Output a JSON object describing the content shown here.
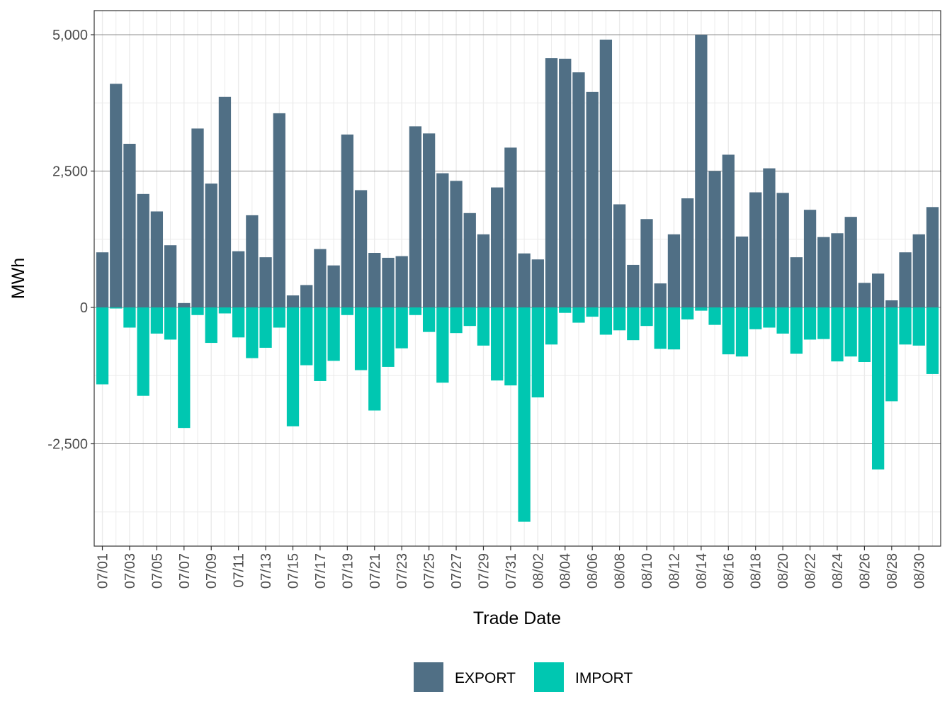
{
  "chart_data": {
    "type": "bar",
    "stacked": true,
    "xlabel": "Trade Date",
    "ylabel": "MWh",
    "ylim": [
      -3500,
      5000
    ],
    "yticks": [
      -2500,
      0,
      2500,
      5000
    ],
    "ytick_labels": [
      "-2,500",
      "0",
      "2,500",
      "5,000"
    ],
    "grid": true,
    "legend_position": "bottom",
    "categories": [
      "07/01",
      "07/02",
      "07/03",
      "07/04",
      "07/05",
      "07/06",
      "07/07",
      "07/08",
      "07/09",
      "07/10",
      "07/11",
      "07/12",
      "07/13",
      "07/14",
      "07/15",
      "07/16",
      "07/17",
      "07/18",
      "07/19",
      "07/20",
      "07/21",
      "07/22",
      "07/23",
      "07/24",
      "07/25",
      "07/26",
      "07/27",
      "07/28",
      "07/29",
      "07/30",
      "07/31",
      "08/01",
      "08/02",
      "08/03",
      "08/04",
      "08/05",
      "08/06",
      "08/07",
      "08/08",
      "08/09",
      "08/10",
      "08/11",
      "08/12",
      "08/13",
      "08/14",
      "08/15",
      "08/16",
      "08/17",
      "08/18",
      "08/19",
      "08/20",
      "08/21",
      "08/22",
      "08/23",
      "08/24",
      "08/25",
      "08/26",
      "08/27",
      "08/28",
      "08/29",
      "08/30",
      "08/31"
    ],
    "x_tick_labels": [
      "07/01",
      "07/03",
      "07/05",
      "07/07",
      "07/09",
      "07/11",
      "07/13",
      "07/15",
      "07/17",
      "07/19",
      "07/21",
      "07/23",
      "07/25",
      "07/27",
      "07/29",
      "07/31",
      "08/02",
      "08/04",
      "08/06",
      "08/08",
      "08/10",
      "08/12",
      "08/14",
      "08/16",
      "08/18",
      "08/20",
      "08/22",
      "08/24",
      "08/26",
      "08/28",
      "08/30"
    ],
    "series": [
      {
        "name": "EXPORT",
        "color": "#506f85",
        "values": [
          1010,
          4100,
          3000,
          2080,
          1760,
          1140,
          80,
          3280,
          2270,
          3860,
          1030,
          1690,
          920,
          3560,
          220,
          410,
          1070,
          770,
          3170,
          2150,
          1000,
          910,
          940,
          3320,
          3190,
          2460,
          2320,
          1730,
          1340,
          2200,
          2930,
          990,
          880,
          4570,
          4560,
          4310,
          3950,
          4910,
          1890,
          780,
          1620,
          440,
          1340,
          2000,
          5000,
          2500,
          2800,
          1300,
          2110,
          2550,
          2100,
          920,
          1790,
          1290,
          1360,
          1660,
          450,
          620,
          130,
          1010,
          1340,
          1840
        ]
      },
      {
        "name": "IMPORT",
        "color": "#00c7b1",
        "values": [
          -1410,
          -20,
          -370,
          -1620,
          -480,
          -590,
          -2210,
          -140,
          -650,
          -110,
          -550,
          -930,
          -740,
          -370,
          -2180,
          -1060,
          -1350,
          -980,
          -140,
          -1150,
          -1890,
          -1090,
          -750,
          -140,
          -450,
          -1380,
          -470,
          -340,
          -700,
          -1340,
          -1430,
          -3930,
          -1650,
          -680,
          -100,
          -280,
          -170,
          -500,
          -420,
          -600,
          -340,
          -760,
          -770,
          -220,
          -60,
          -320,
          -860,
          -900,
          -400,
          -370,
          -480,
          -850,
          -590,
          -580,
          -990,
          -900,
          -1000,
          -2970,
          -1720,
          -680,
          -700,
          -1220
        ]
      }
    ]
  }
}
